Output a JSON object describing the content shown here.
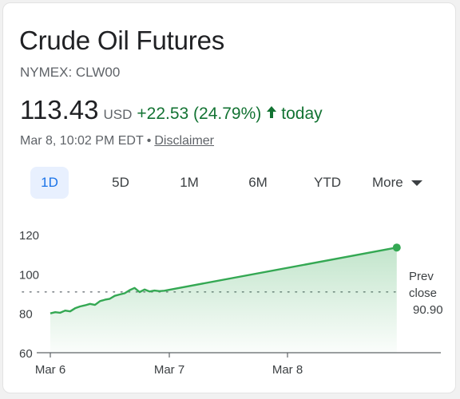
{
  "header": {
    "title": "Crude Oil Futures",
    "ticker": "NYMEX: CLW00"
  },
  "quote": {
    "price": "113.43",
    "currency": "USD",
    "change": "+22.53 (24.79%)",
    "period": "today",
    "timestamp": "Mar 8, 10:02 PM EDT",
    "separator": "•",
    "disclaimer": "Disclaimer"
  },
  "ranges": {
    "items": [
      "1D",
      "5D",
      "1M",
      "6M",
      "YTD"
    ],
    "more_label": "More",
    "selected": "1D"
  },
  "colors": {
    "positive": "#137333",
    "line": "#34a853",
    "accent": "#1a73e8",
    "prev_close_line": "#80868b"
  },
  "chart_data": {
    "type": "area",
    "x_ticks": [
      "Mar 6",
      "Mar 7",
      "Mar 8"
    ],
    "ylim": [
      60,
      120
    ],
    "y_ticks": [
      60,
      80,
      100,
      120
    ],
    "prev_close": {
      "label_line1": "Prev",
      "label_line2": "close",
      "value": 90.9,
      "value_label": "90.90"
    },
    "series": [
      {
        "values_note_free": true,
        "points": [
          [
            "Mar 6 00:00",
            80.0
          ],
          [
            "Mar 6 01:00",
            80.6
          ],
          [
            "Mar 6 02:00",
            80.3
          ],
          [
            "Mar 6 03:00",
            81.4
          ],
          [
            "Mar 6 04:00",
            81.0
          ],
          [
            "Mar 6 05:00",
            82.6
          ],
          [
            "Mar 6 06:00",
            83.5
          ],
          [
            "Mar 6 07:00",
            84.1
          ],
          [
            "Mar 6 08:00",
            84.8
          ],
          [
            "Mar 6 09:00",
            84.3
          ],
          [
            "Mar 6 10:00",
            86.2
          ],
          [
            "Mar 6 11:00",
            86.9
          ],
          [
            "Mar 6 12:00",
            87.4
          ],
          [
            "Mar 6 13:00",
            88.9
          ],
          [
            "Mar 6 14:00",
            89.6
          ],
          [
            "Mar 6 15:00",
            90.2
          ],
          [
            "Mar 6 16:00",
            91.8
          ],
          [
            "Mar 6 17:00",
            92.9
          ],
          [
            "Mar 6 18:00",
            90.8
          ],
          [
            "Mar 6 19:00",
            92.1
          ],
          [
            "Mar 6 20:00",
            91.1
          ],
          [
            "Mar 6 21:00",
            91.6
          ],
          [
            "Mar 6 22:00",
            91.3
          ],
          [
            "Mar 6 23:00",
            91.5
          ],
          [
            "Mar 8 22:02",
            113.43
          ]
        ]
      }
    ]
  }
}
